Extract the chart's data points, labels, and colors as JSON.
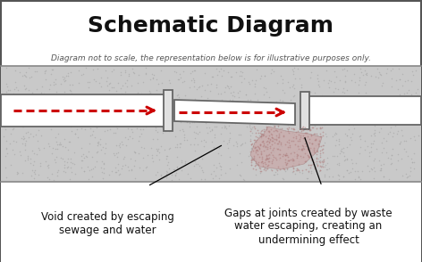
{
  "title": "Schematic Diagram",
  "subtitle": "Diagram not to scale, the representation below is for illustrative purposes only.",
  "label_left": "Void created by escaping\nsewage and water",
  "label_right": "Gaps at joints created by waste\nwater escaping, creating an\nundermining effect",
  "bg_color": "#ffffff",
  "soil_color": "#c9c9c9",
  "pipe_color": "#ffffff",
  "pipe_stroke": "#666666",
  "arrow_color": "#cc0000",
  "void_fill": "#c8a8a8",
  "title_fontsize": 18,
  "subtitle_fontsize": 6.5,
  "label_fontsize": 8.5,
  "border_color": "#555555",
  "divider_color": "#888888",
  "soil_dot_color": "#aaaaaa",
  "void_dot_color": "#b08080"
}
